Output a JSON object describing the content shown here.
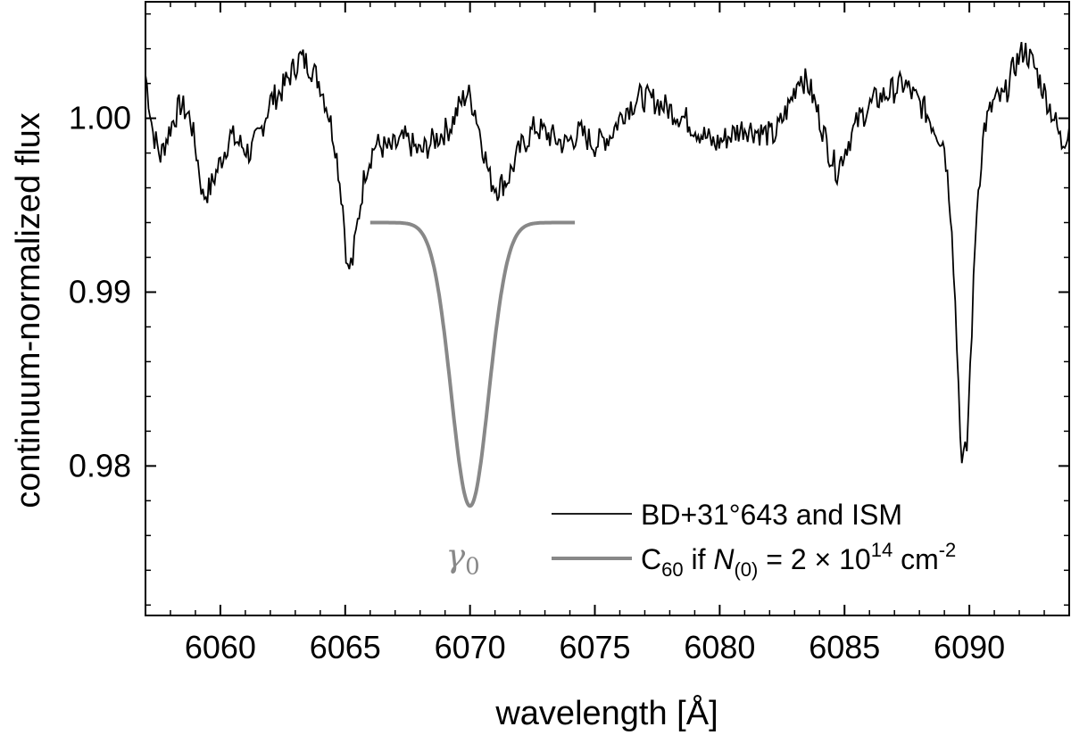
{
  "chart_data": {
    "type": "line",
    "xlabel": "wavelength [Å]",
    "ylabel": "continuum-normalized flux",
    "xlim": [
      6057,
      6094
    ],
    "ylim": [
      0.9714,
      1.0067
    ],
    "xticks": [
      6060,
      6065,
      6070,
      6075,
      6080,
      6085,
      6090
    ],
    "xtick_labels": [
      "6060",
      "6065",
      "6070",
      "6075",
      "6080",
      "6085",
      "6090"
    ],
    "yticks": [
      0.98,
      0.99,
      1.0
    ],
    "ytick_labels": [
      "0.98",
      "0.99",
      "1.00"
    ],
    "grid": false,
    "legend_position": "bottom-right",
    "series": [
      {
        "name": "BD+31°643 and ISM",
        "color": "#000000",
        "style": "observed-spectrum",
        "points": [
          [
            6057.0,
            1.0025
          ],
          [
            6057.3,
            0.9992
          ],
          [
            6057.6,
            0.9978
          ],
          [
            6058.0,
            0.9995
          ],
          [
            6058.4,
            1.0008
          ],
          [
            6058.8,
            1.0
          ],
          [
            6059.1,
            0.9975
          ],
          [
            6059.3,
            0.9955
          ],
          [
            6059.6,
            0.996
          ],
          [
            6060.0,
            0.9975
          ],
          [
            6060.4,
            0.999
          ],
          [
            6060.8,
            0.9985
          ],
          [
            6061.2,
            0.998
          ],
          [
            6061.6,
            0.9992
          ],
          [
            6062.0,
            1.001
          ],
          [
            6062.4,
            1.0015
          ],
          [
            6062.8,
            1.0025
          ],
          [
            6063.2,
            1.0035
          ],
          [
            6063.6,
            1.003
          ],
          [
            6064.0,
            1.002
          ],
          [
            6064.3,
            1.0005
          ],
          [
            6064.6,
            0.9985
          ],
          [
            6064.9,
            0.995
          ],
          [
            6065.1,
            0.9912
          ],
          [
            6065.3,
            0.9918
          ],
          [
            6065.5,
            0.994
          ],
          [
            6065.8,
            0.997
          ],
          [
            6066.2,
            0.9985
          ],
          [
            6066.8,
            0.9982
          ],
          [
            6067.4,
            0.9988
          ],
          [
            6068.0,
            0.998
          ],
          [
            6068.6,
            0.9988
          ],
          [
            6069.2,
            0.9995
          ],
          [
            6069.6,
            1.0008
          ],
          [
            6069.9,
            1.0015
          ],
          [
            6070.2,
            1.0005
          ],
          [
            6070.5,
            0.9985
          ],
          [
            6070.8,
            0.9965
          ],
          [
            6071.1,
            0.996
          ],
          [
            6071.5,
            0.9965
          ],
          [
            6072.0,
            0.9982
          ],
          [
            6072.6,
            0.9995
          ],
          [
            6073.2,
            0.999
          ],
          [
            6073.8,
            0.9985
          ],
          [
            6074.4,
            0.9992
          ],
          [
            6075.0,
            0.9985
          ],
          [
            6075.6,
            0.999
          ],
          [
            6076.2,
            1.0005
          ],
          [
            6076.8,
            1.0012
          ],
          [
            6077.4,
            1.001
          ],
          [
            6078.0,
            1.0005
          ],
          [
            6078.6,
            1.0
          ],
          [
            6079.2,
            0.9992
          ],
          [
            6079.8,
            0.9985
          ],
          [
            6080.4,
            0.999
          ],
          [
            6081.0,
            0.9995
          ],
          [
            6081.6,
            0.9992
          ],
          [
            6082.2,
            0.999
          ],
          [
            6082.8,
            1.0008
          ],
          [
            6083.2,
            1.0025
          ],
          [
            6083.6,
            1.0018
          ],
          [
            6084.0,
            1.0
          ],
          [
            6084.4,
            0.998
          ],
          [
            6084.7,
            0.997
          ],
          [
            6085.1,
            0.9985
          ],
          [
            6085.6,
            1.0
          ],
          [
            6086.2,
            1.001
          ],
          [
            6086.8,
            1.0015
          ],
          [
            6087.4,
            1.002
          ],
          [
            6087.8,
            1.0012
          ],
          [
            6088.2,
            1.0005
          ],
          [
            6088.6,
            0.9995
          ],
          [
            6089.0,
            0.9985
          ],
          [
            6089.3,
            0.994
          ],
          [
            6089.5,
            0.987
          ],
          [
            6089.7,
            0.98
          ],
          [
            6089.9,
            0.981
          ],
          [
            6090.1,
            0.988
          ],
          [
            6090.3,
            0.995
          ],
          [
            6090.6,
            0.9995
          ],
          [
            6091.0,
            1.001
          ],
          [
            6091.4,
            1.0012
          ],
          [
            6091.8,
            1.003
          ],
          [
            6092.2,
            1.004
          ],
          [
            6092.6,
            1.003
          ],
          [
            6093.0,
            1.0015
          ],
          [
            6093.4,
            1.0
          ],
          [
            6093.7,
            0.9985
          ],
          [
            6094.0,
            0.9995
          ]
        ]
      },
      {
        "name": "C60 if N(0) = 2 × 10^14 cm^-2",
        "color": "#888888",
        "style": "gaussian-model",
        "continuum": 0.994,
        "center": 6070.0,
        "depth": 0.0163,
        "sigma": 0.75,
        "x_range": [
          6066.0,
          6074.2
        ]
      }
    ],
    "annotations": [
      {
        "text": "γ",
        "subscript": "0",
        "x": 6070.0,
        "y": 0.9748
      }
    ],
    "legend": [
      {
        "label": "BD+31°643 and ISM",
        "color": "#000000"
      },
      {
        "label_parts": [
          "C",
          "60",
          " if ",
          "N",
          "(0)",
          " = 2 × 10",
          "14",
          " cm",
          "-2"
        ],
        "color": "#888888"
      }
    ]
  }
}
